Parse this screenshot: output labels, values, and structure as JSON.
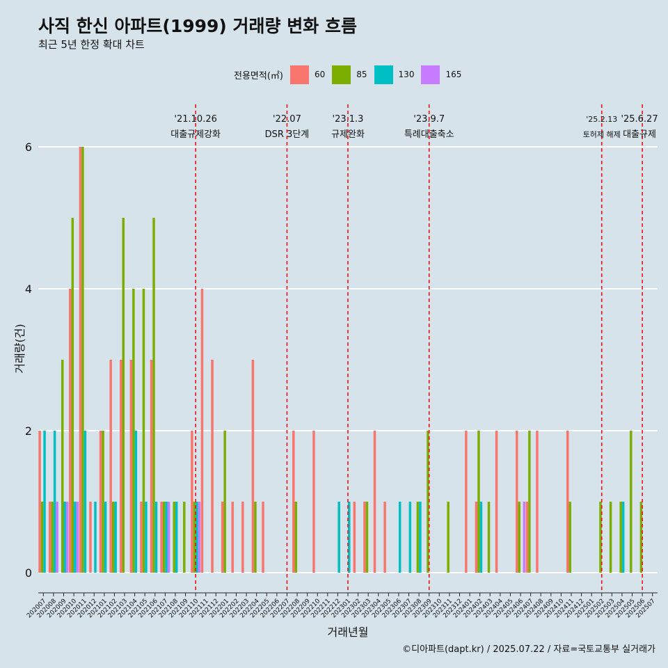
{
  "title": "사직 한신 아파트(1999) 거래량 변화 흐름",
  "subtitle": "최근 5년 한정 확대 차트",
  "caption": "©디아파트(dapt.kr) / 2025.07.22 / 자료=국토교통부 실거래가",
  "legend": {
    "title": "전용면적(㎡)",
    "items": [
      {
        "label": "60",
        "color": "#F8766D"
      },
      {
        "label": "85",
        "color": "#7CAE00"
      },
      {
        "label": "130",
        "color": "#00BFC4"
      },
      {
        "label": "165",
        "color": "#C77CFF"
      }
    ]
  },
  "chart_data": {
    "type": "bar",
    "xlabel": "거래년월",
    "ylabel": "거래량(건)",
    "ylim": [
      0,
      6.2
    ],
    "yticks": [
      0,
      2,
      4,
      6
    ],
    "grid": true,
    "legend_position": "top",
    "categories": [
      "202007",
      "202008",
      "202009",
      "202010",
      "202011",
      "202012",
      "202101",
      "202102",
      "202103",
      "202104",
      "202105",
      "202106",
      "202107",
      "202108",
      "202109",
      "202110",
      "202111",
      "202112",
      "202201",
      "202202",
      "202203",
      "202204",
      "202205",
      "202206",
      "202207",
      "202208",
      "202209",
      "202210",
      "202211",
      "202212",
      "202301",
      "202302",
      "202303",
      "202304",
      "202305",
      "202306",
      "202307",
      "202308",
      "202309",
      "202310",
      "202311",
      "202312",
      "202401",
      "202402",
      "202403",
      "202404",
      "202405",
      "202406",
      "202407",
      "202408",
      "202409",
      "202410",
      "202411",
      "202412",
      "202501",
      "202502",
      "202503",
      "202504",
      "202505",
      "202506",
      "202507"
    ],
    "series": [
      {
        "name": "60",
        "values": [
          2,
          1,
          0,
          4,
          6,
          1,
          2,
          3,
          3,
          3,
          1,
          3,
          1,
          0,
          0,
          2,
          4,
          3,
          1,
          1,
          1,
          3,
          1,
          0,
          0,
          2,
          0,
          2,
          0,
          0,
          0,
          1,
          1,
          2,
          1,
          0,
          0,
          0,
          0,
          0,
          0,
          0,
          2,
          1,
          0,
          2,
          0,
          2,
          1,
          2,
          0,
          0,
          2,
          0,
          0,
          0,
          0,
          0,
          0,
          0,
          0
        ]
      },
      {
        "name": "85",
        "values": [
          1,
          1,
          3,
          5,
          6,
          0,
          2,
          1,
          5,
          4,
          4,
          5,
          1,
          1,
          1,
          1,
          0,
          0,
          2,
          0,
          0,
          1,
          0,
          0,
          0,
          1,
          0,
          0,
          0,
          0,
          0,
          0,
          1,
          0,
          0,
          0,
          0,
          1,
          2,
          0,
          1,
          0,
          0,
          2,
          1,
          0,
          0,
          1,
          2,
          0,
          0,
          0,
          1,
          0,
          0,
          1,
          1,
          1,
          2,
          1,
          0
        ]
      },
      {
        "name": "130",
        "values": [
          2,
          2,
          1,
          1,
          2,
          1,
          1,
          1,
          0,
          2,
          1,
          1,
          1,
          1,
          0,
          1,
          0,
          0,
          0,
          0,
          0,
          0,
          0,
          0,
          0,
          0,
          0,
          0,
          0,
          1,
          1,
          0,
          0,
          0,
          0,
          1,
          1,
          1,
          0,
          0,
          0,
          0,
          0,
          1,
          0,
          0,
          0,
          0,
          0,
          0,
          0,
          0,
          0,
          0,
          0,
          0,
          0,
          1,
          0,
          0,
          0
        ]
      },
      {
        "name": "165",
        "values": [
          0,
          1,
          1,
          1,
          0,
          0,
          0,
          0,
          0,
          0,
          0,
          0,
          1,
          0,
          0,
          1,
          0,
          0,
          0,
          0,
          0,
          0,
          0,
          0,
          0,
          0,
          0,
          0,
          0,
          0,
          0,
          0,
          0,
          0,
          0,
          0,
          0,
          0,
          0,
          0,
          0,
          0,
          0,
          0,
          0,
          0,
          0,
          1,
          0,
          0,
          0,
          0,
          0,
          0,
          0,
          0,
          0,
          0,
          0,
          0,
          0
        ]
      }
    ],
    "annotations": [
      {
        "category": "202110",
        "date": "'21.10.26",
        "text": "대출규제강화"
      },
      {
        "category": "202207",
        "date": "'22.07",
        "text": "DSR 3단계"
      },
      {
        "category": "202301",
        "date": "'23.1.3",
        "text": "규제완화"
      },
      {
        "category": "202309",
        "date": "'23.9.7",
        "text": "특례대출축소"
      },
      {
        "category": "202502",
        "date": "'25.2.13",
        "text": "토허제 해제"
      },
      {
        "category": "202506",
        "date": "'25.6.27",
        "text": "대출규제"
      }
    ]
  }
}
